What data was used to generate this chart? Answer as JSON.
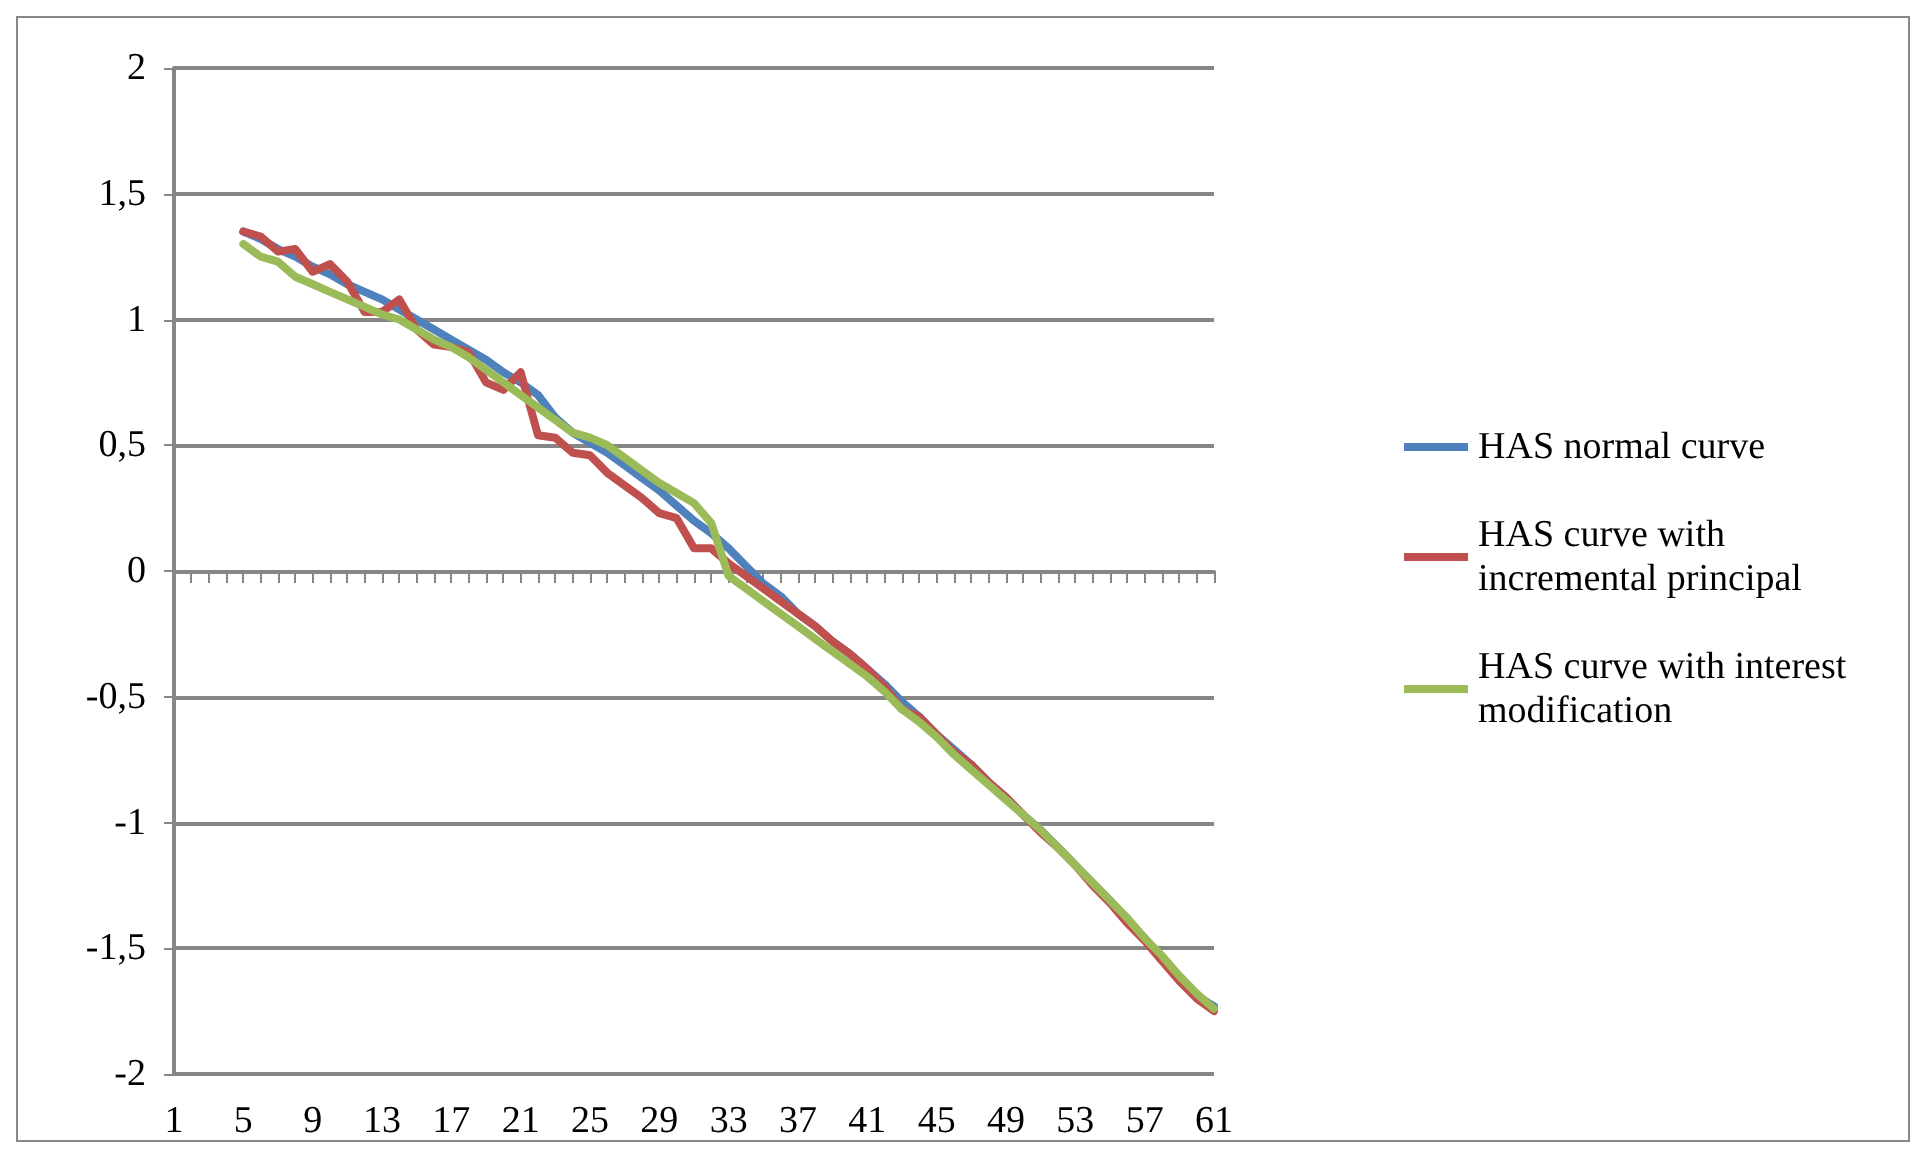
{
  "chart_data": {
    "type": "line",
    "categories": [
      "1",
      null,
      null,
      null,
      "5",
      null,
      null,
      null,
      "9",
      null,
      null,
      null,
      "13",
      null,
      null,
      null,
      "17",
      null,
      null,
      null,
      "21",
      null,
      null,
      null,
      "25",
      null,
      null,
      null,
      "29",
      null,
      null,
      null,
      "33",
      null,
      null,
      null,
      "37",
      null,
      null,
      null,
      "41",
      null,
      null,
      null,
      "45",
      null,
      null,
      null,
      "49",
      null,
      null,
      null,
      "53",
      null,
      null,
      null,
      "57",
      null,
      null,
      null,
      "61"
    ],
    "series": [
      {
        "name": "HAS normal curve",
        "color": "#4f81bd",
        "values": [
          null,
          null,
          null,
          null,
          1.35,
          1.32,
          1.28,
          1.25,
          1.21,
          1.18,
          1.14,
          1.11,
          1.08,
          1.04,
          1.0,
          0.96,
          0.92,
          0.88,
          0.84,
          0.79,
          0.75,
          0.7,
          0.61,
          0.55,
          0.51,
          0.47,
          0.42,
          0.37,
          0.32,
          0.26,
          0.2,
          0.15,
          0.09,
          0.02,
          -0.05,
          -0.1,
          -0.17,
          -0.22,
          -0.28,
          -0.33,
          -0.39,
          -0.45,
          -0.52,
          -0.58,
          -0.65,
          -0.71,
          -0.77,
          -0.84,
          -0.9,
          -0.97,
          -1.03,
          -1.1,
          -1.17,
          -1.24,
          -1.31,
          -1.39,
          -1.46,
          -1.54,
          -1.62,
          -1.69,
          -1.73
        ]
      },
      {
        "name": "HAS curve with incremental principal",
        "color": "#c0504d",
        "values": [
          null,
          null,
          null,
          null,
          1.35,
          1.33,
          1.27,
          1.28,
          1.19,
          1.22,
          1.15,
          1.03,
          1.03,
          1.08,
          0.96,
          0.9,
          0.89,
          0.87,
          0.75,
          0.72,
          0.79,
          0.54,
          0.53,
          0.47,
          0.46,
          0.39,
          0.34,
          0.29,
          0.23,
          0.21,
          0.09,
          0.09,
          0.03,
          -0.02,
          -0.07,
          -0.12,
          -0.17,
          -0.22,
          -0.28,
          -0.33,
          -0.39,
          -0.46,
          -0.55,
          -0.58,
          -0.65,
          -0.72,
          -0.77,
          -0.84,
          -0.9,
          -0.97,
          -1.04,
          -1.1,
          -1.17,
          -1.25,
          -1.32,
          -1.4,
          -1.47,
          -1.55,
          -1.63,
          -1.7,
          -1.75
        ]
      },
      {
        "name": "HAS curve with interest modification",
        "color": "#9bbb59",
        "values": [
          null,
          null,
          null,
          null,
          1.3,
          1.25,
          1.23,
          1.17,
          1.14,
          1.11,
          1.08,
          1.05,
          1.02,
          1.0,
          0.96,
          0.92,
          0.89,
          0.85,
          0.8,
          0.75,
          0.7,
          0.65,
          0.6,
          0.55,
          0.53,
          0.5,
          0.45,
          0.4,
          0.35,
          0.31,
          0.27,
          0.19,
          -0.02,
          -0.07,
          -0.12,
          -0.17,
          -0.22,
          -0.27,
          -0.32,
          -0.37,
          -0.42,
          -0.48,
          -0.55,
          -0.6,
          -0.66,
          -0.73,
          -0.79,
          -0.85,
          -0.91,
          -0.97,
          -1.03,
          -1.1,
          -1.17,
          -1.24,
          -1.31,
          -1.38,
          -1.46,
          -1.53,
          -1.61,
          -1.68,
          -1.74
        ]
      }
    ],
    "ylim": [
      -2,
      2
    ],
    "yticks": [
      -2,
      {
        "value": -1.5,
        "label": "-1,5"
      },
      -1,
      {
        "value": -0.5,
        "label": "-0,5"
      },
      0,
      {
        "value": 0.5,
        "label": "0,5"
      },
      1,
      {
        "value": 1.5,
        "label": "1,5"
      },
      2
    ],
    "grid": "y",
    "legend": "right",
    "marker": "none",
    "line_style": "solid"
  }
}
